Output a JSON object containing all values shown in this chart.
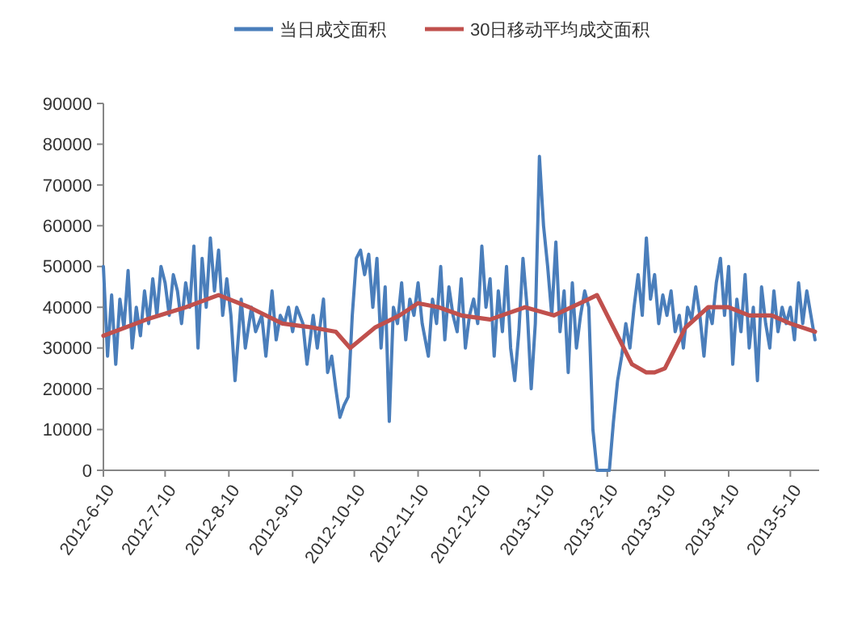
{
  "chart_data": {
    "type": "line",
    "legend": "top",
    "line_style": "solid",
    "grid": false,
    "xlim": [
      "2012-06-10",
      "2013-05-24"
    ],
    "xticks": [
      {
        "value": "2012-06-10",
        "label": "2012-6-10"
      },
      {
        "value": "2012-07-10",
        "label": "2012-7-10"
      },
      {
        "value": "2012-08-10",
        "label": "2012-8-10"
      },
      {
        "value": "2012-09-10",
        "label": "2012-9-10"
      },
      {
        "value": "2012-10-10",
        "label": "2012-10-10"
      },
      {
        "value": "2012-11-10",
        "label": "2012-11-10"
      },
      {
        "value": "2012-12-10",
        "label": "2012-12-10"
      },
      {
        "value": "2013-01-10",
        "label": "2013-1-10"
      },
      {
        "value": "2013-02-10",
        "label": "2013-2-10"
      },
      {
        "value": "2013-03-10",
        "label": "2013-3-10"
      },
      {
        "value": "2013-04-10",
        "label": "2013-4-10"
      },
      {
        "value": "2013-05-10",
        "label": "2013-5-10"
      }
    ],
    "ylim": [
      0,
      90000
    ],
    "yticks": [
      0,
      10000,
      20000,
      30000,
      40000,
      50000,
      60000,
      70000,
      80000,
      90000
    ],
    "series": [
      {
        "name": "当日成交面积",
        "color": "#4a7ebb",
        "x": [
          "2012-06-10",
          "2012-06-12",
          "2012-06-14",
          "2012-06-16",
          "2012-06-18",
          "2012-06-20",
          "2012-06-22",
          "2012-06-24",
          "2012-06-26",
          "2012-06-28",
          "2012-06-30",
          "2012-07-02",
          "2012-07-04",
          "2012-07-06",
          "2012-07-08",
          "2012-07-10",
          "2012-07-12",
          "2012-07-14",
          "2012-07-16",
          "2012-07-18",
          "2012-07-20",
          "2012-07-22",
          "2012-07-24",
          "2012-07-26",
          "2012-07-28",
          "2012-07-30",
          "2012-08-01",
          "2012-08-03",
          "2012-08-05",
          "2012-08-07",
          "2012-08-09",
          "2012-08-11",
          "2012-08-13",
          "2012-08-16",
          "2012-08-18",
          "2012-08-21",
          "2012-08-23",
          "2012-08-26",
          "2012-08-28",
          "2012-08-31",
          "2012-09-02",
          "2012-09-04",
          "2012-09-06",
          "2012-09-08",
          "2012-09-10",
          "2012-09-12",
          "2012-09-15",
          "2012-09-17",
          "2012-09-20",
          "2012-09-22",
          "2012-09-25",
          "2012-09-27",
          "2012-09-29",
          "2012-10-01",
          "2012-10-03",
          "2012-10-05",
          "2012-10-07",
          "2012-10-09",
          "2012-10-11",
          "2012-10-13",
          "2012-10-15",
          "2012-10-17",
          "2012-10-19",
          "2012-10-21",
          "2012-10-23",
          "2012-10-25",
          "2012-10-27",
          "2012-10-29",
          "2012-10-31",
          "2012-11-02",
          "2012-11-04",
          "2012-11-06",
          "2012-11-08",
          "2012-11-10",
          "2012-11-12",
          "2012-11-15",
          "2012-11-17",
          "2012-11-19",
          "2012-11-21",
          "2012-11-23",
          "2012-11-25",
          "2012-11-27",
          "2012-11-29",
          "2012-12-01",
          "2012-12-03",
          "2012-12-05",
          "2012-12-07",
          "2012-12-09",
          "2012-12-11",
          "2012-12-13",
          "2012-12-15",
          "2012-12-17",
          "2012-12-19",
          "2012-12-21",
          "2012-12-23",
          "2012-12-25",
          "2012-12-27",
          "2012-12-29",
          "2012-12-31",
          "2013-01-02",
          "2013-01-04",
          "2013-01-06",
          "2013-01-08",
          "2013-01-10",
          "2013-01-12",
          "2013-01-14",
          "2013-01-16",
          "2013-01-18",
          "2013-01-20",
          "2013-01-22",
          "2013-01-24",
          "2013-01-26",
          "2013-01-28",
          "2013-01-30",
          "2013-02-01",
          "2013-02-03",
          "2013-02-05",
          "2013-02-08",
          "2013-02-11",
          "2013-02-13",
          "2013-02-15",
          "2013-02-17",
          "2013-02-19",
          "2013-02-21",
          "2013-02-23",
          "2013-02-25",
          "2013-02-27",
          "2013-03-01",
          "2013-03-03",
          "2013-03-05",
          "2013-03-07",
          "2013-03-09",
          "2013-03-11",
          "2013-03-13",
          "2013-03-15",
          "2013-03-17",
          "2013-03-19",
          "2013-03-21",
          "2013-03-23",
          "2013-03-25",
          "2013-03-27",
          "2013-03-29",
          "2013-03-31",
          "2013-04-02",
          "2013-04-04",
          "2013-04-06",
          "2013-04-08",
          "2013-04-10",
          "2013-04-12",
          "2013-04-14",
          "2013-04-16",
          "2013-04-18",
          "2013-04-20",
          "2013-04-22",
          "2013-04-24",
          "2013-04-26",
          "2013-04-28",
          "2013-04-30",
          "2013-05-02",
          "2013-05-04",
          "2013-05-06",
          "2013-05-08",
          "2013-05-10",
          "2013-05-12",
          "2013-05-14",
          "2013-05-16",
          "2013-05-18",
          "2013-05-20",
          "2013-05-22"
        ],
        "values": [
          50000,
          28000,
          43000,
          26000,
          42000,
          35000,
          49000,
          30000,
          40000,
          33000,
          44000,
          36000,
          47000,
          38000,
          50000,
          46000,
          38000,
          48000,
          44000,
          36000,
          46000,
          40000,
          55000,
          30000,
          52000,
          40000,
          57000,
          44000,
          54000,
          38000,
          47000,
          38000,
          22000,
          42000,
          30000,
          40000,
          34000,
          38000,
          28000,
          44000,
          32000,
          38000,
          36000,
          40000,
          34000,
          40000,
          36000,
          26000,
          38000,
          30000,
          42000,
          24000,
          28000,
          20000,
          13000,
          16000,
          18000,
          38000,
          52000,
          54000,
          48000,
          53000,
          40000,
          52000,
          30000,
          45000,
          12000,
          40000,
          36000,
          46000,
          32000,
          42000,
          38000,
          46000,
          36000,
          28000,
          42000,
          36000,
          50000,
          32000,
          45000,
          38000,
          34000,
          47000,
          30000,
          38000,
          42000,
          36000,
          55000,
          40000,
          47000,
          28000,
          44000,
          34000,
          50000,
          30000,
          22000,
          34000,
          52000,
          40000,
          20000,
          36000,
          77000,
          60000,
          50000,
          38000,
          56000,
          34000,
          44000,
          24000,
          46000,
          30000,
          38000,
          44000,
          40000,
          10000,
          0,
          0,
          0,
          12000,
          22000,
          28000,
          36000,
          30000,
          40000,
          48000,
          38000,
          57000,
          42000,
          48000,
          36000,
          43000,
          38000,
          44000,
          34000,
          38000,
          30000,
          40000,
          37000,
          45000,
          38000,
          28000,
          40000,
          36000,
          46000,
          52000,
          38000,
          50000,
          26000,
          42000,
          34000,
          48000,
          30000,
          40000,
          22000,
          45000,
          36000,
          30000,
          44000,
          34000,
          40000,
          36000,
          40000,
          32000,
          46000,
          36000,
          44000,
          38000,
          32000
        ]
      },
      {
        "name": "30日移动平均成交面积",
        "color": "#c0504d",
        "x": [
          "2012-06-10",
          "2012-07-01",
          "2012-07-20",
          "2012-08-05",
          "2012-08-20",
          "2012-09-05",
          "2012-09-20",
          "2012-10-01",
          "2012-10-08",
          "2012-10-20",
          "2012-11-01",
          "2012-11-10",
          "2012-11-20",
          "2012-12-01",
          "2012-12-15",
          "2013-01-01",
          "2013-01-15",
          "2013-02-01",
          "2013-02-05",
          "2013-02-15",
          "2013-02-22",
          "2013-03-01",
          "2013-03-05",
          "2013-03-10",
          "2013-03-20",
          "2013-03-31",
          "2013-04-10",
          "2013-04-20",
          "2013-05-01",
          "2013-05-10",
          "2013-05-22"
        ],
        "values": [
          33000,
          37000,
          40000,
          43000,
          40000,
          36000,
          35000,
          34000,
          30000,
          35000,
          38000,
          41000,
          40000,
          38000,
          37000,
          40000,
          38000,
          42000,
          43000,
          33000,
          26000,
          24000,
          24000,
          25000,
          35000,
          40000,
          40000,
          38000,
          38000,
          36000,
          34000
        ]
      }
    ]
  }
}
